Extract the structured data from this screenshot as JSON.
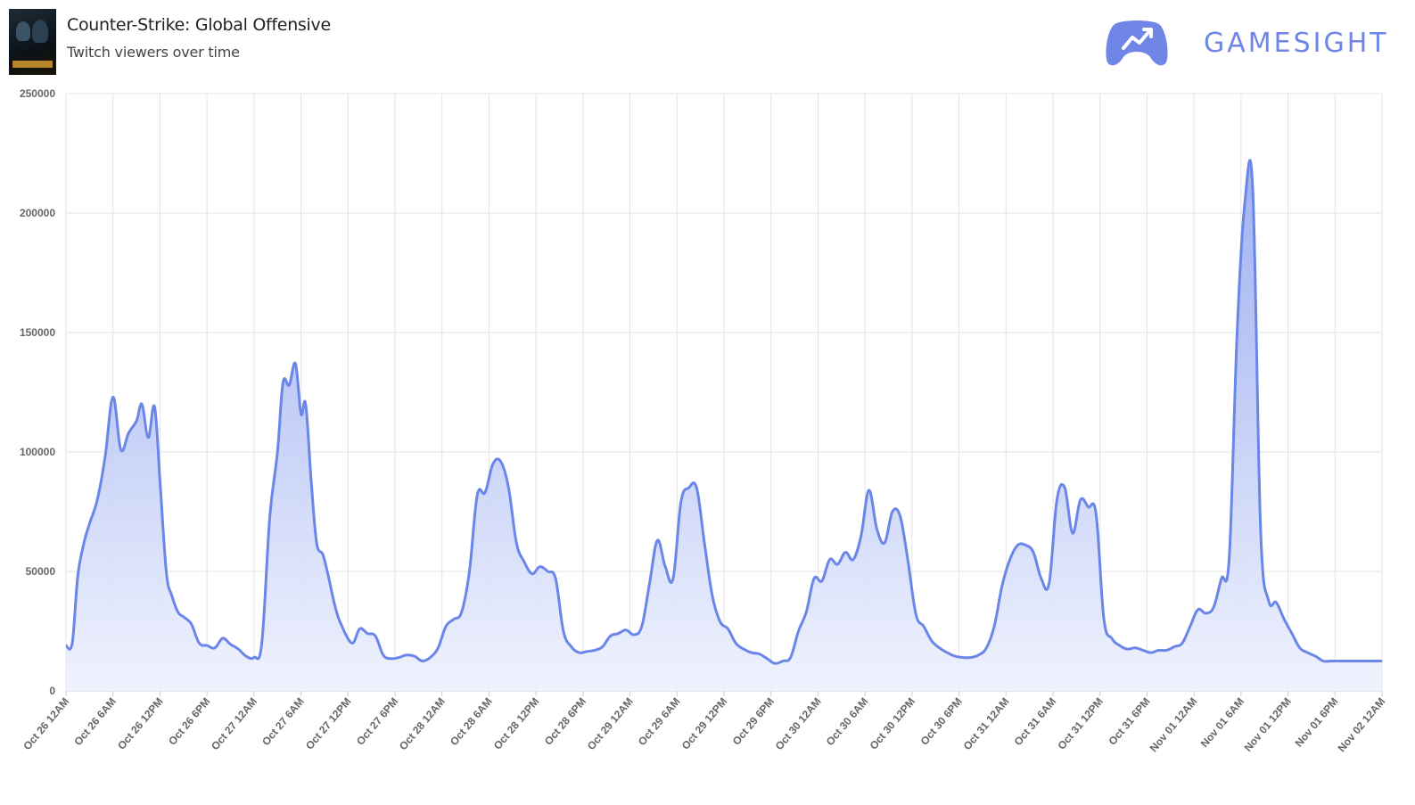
{
  "header": {
    "game_title": "Counter-Strike: Global Offensive",
    "subtitle": "Twitch viewers over time",
    "thumbnail_icon": "csgo-cover-art-icon"
  },
  "brand": {
    "name": "GAMESIGHT",
    "icon": "gamepad-trend-icon",
    "color": "#6f86e6"
  },
  "chart_data": {
    "type": "area",
    "title": "",
    "xlabel": "",
    "ylabel": "",
    "ylim": [
      0,
      250000
    ],
    "yticks": [
      0,
      50000,
      100000,
      150000,
      200000,
      250000
    ],
    "grid": true,
    "line_color": "#6a86e8",
    "fill_color_top": "#8ea4ef",
    "fill_color_bottom": "#eef1fd",
    "x_tick_labels": [
      "Oct 26 12AM",
      "Oct 26 6AM",
      "Oct 26 12PM",
      "Oct 26 6PM",
      "Oct 27 12AM",
      "Oct 27 6AM",
      "Oct 27 12PM",
      "Oct 27 6PM",
      "Oct 28 12AM",
      "Oct 28 6AM",
      "Oct 28 12PM",
      "Oct 28 6PM",
      "Oct 29 12AM",
      "Oct 29 6AM",
      "Oct 29 12PM",
      "Oct 29 6PM",
      "Oct 30 12AM",
      "Oct 30 6AM",
      "Oct 30 12PM",
      "Oct 30 6PM",
      "Oct 31 12AM",
      "Oct 31 6AM",
      "Oct 31 12PM",
      "Oct 31 6PM",
      "Nov 01 12AM",
      "Nov 01 6AM",
      "Nov 01 12PM",
      "Nov 01 6PM",
      "Nov 02 12AM"
    ],
    "series": [
      {
        "hours": [
          0,
          0.8,
          1.5,
          2.3,
          3,
          4,
          5,
          6,
          7,
          8,
          9,
          9.7,
          10.5,
          11.3,
          12,
          12.8,
          13.5,
          14.3,
          15,
          16,
          17,
          18,
          19,
          20,
          21,
          22,
          23,
          24,
          25,
          26,
          27,
          27.7,
          28.5,
          29.3,
          30,
          30.6,
          31.3,
          32,
          32.8,
          33.5,
          34.3,
          35.1,
          36.5,
          37.5,
          38.5,
          39.5,
          40.5,
          41.5,
          42.5,
          43.5,
          44.5,
          45.5,
          46.5,
          47.5,
          48.5,
          49.5,
          50.5,
          51.5,
          52.5,
          53.5,
          54.5,
          55.5,
          56.5,
          57.5,
          58.5,
          59.5,
          60.5,
          61.5,
          62.5,
          63.5,
          64.5,
          65.5,
          66.5,
          67.5,
          68.5,
          69.5,
          70.5,
          71.5,
          72.5,
          73.5,
          74.5,
          75.5,
          76.5,
          77.5,
          78.5,
          79.5,
          80.5,
          81.5,
          82.5,
          83.5,
          84.5,
          85.5,
          86.5,
          87.5,
          88.5,
          89.5,
          90.5,
          91.5,
          92.5,
          93.5,
          94.5,
          95.5,
          96.5,
          97.5,
          98.5,
          99.5,
          100.5,
          101.5,
          102.5,
          103.5,
          104.5,
          105.5,
          106.5,
          107.5,
          108.5,
          109.5,
          110.5,
          111.5,
          112.5,
          113.5,
          114.5,
          115.5,
          116.5,
          117.5,
          118.5,
          119.5,
          120.5,
          121.5,
          122.5,
          123.5,
          124.5,
          125.5,
          126.5,
          127.5,
          128.5,
          129.5,
          130.5,
          131.5,
          132.5,
          133.5,
          134.5,
          135.5,
          136.5,
          137.5,
          138.5,
          139.5,
          140.5,
          141.5,
          142.5,
          143.5,
          144.5,
          145.5,
          146.5,
          147.5,
          148.5,
          149.5,
          150.5,
          151.5,
          152.5,
          153.5,
          154.5,
          155.5,
          156.5,
          157.5,
          158.5,
          159.5,
          160.5,
          161.5,
          162.5,
          163.5,
          164.5,
          165.5,
          166.5,
          167.5,
          168
        ],
        "values": [
          19000,
          20000,
          48000,
          62000,
          70000,
          80000,
          98000,
          123000,
          101000,
          108000,
          113000,
          120000,
          106000,
          119000,
          88000,
          50000,
          40000,
          33000,
          31000,
          28000,
          20000,
          19000,
          18000,
          22000,
          19500,
          17500,
          14500,
          14000,
          20000,
          72000,
          100000,
          129000,
          128000,
          137000,
          116000,
          120000,
          88000,
          62000,
          57000,
          48000,
          36000,
          28000,
          20000,
          26000,
          24000,
          23000,
          15000,
          13500,
          14000,
          15000,
          14500,
          12500,
          14000,
          18000,
          27000,
          30000,
          33000,
          50000,
          82000,
          83000,
          95000,
          96000,
          85000,
          62000,
          54000,
          49000,
          52000,
          50000,
          47000,
          25000,
          18500,
          16000,
          16500,
          17000,
          18500,
          23000,
          24000,
          25500,
          23500,
          27000,
          45000,
          63000,
          52000,
          47000,
          79000,
          85000,
          85000,
          62000,
          40000,
          29000,
          26000,
          20000,
          17500,
          16000,
          15500,
          13500,
          11500,
          12500,
          14000,
          25000,
          33000,
          47000,
          46000,
          55000,
          53000,
          58000,
          55000,
          65000,
          84000,
          68000,
          62000,
          75000,
          73000,
          54000,
          32000,
          27000,
          21000,
          18000,
          16000,
          14500,
          14000,
          14000,
          15000,
          18000,
          27000,
          44000,
          55000,
          61000,
          61000,
          58000,
          47000,
          45000,
          80000,
          85000,
          66000,
          80000,
          77000,
          74000,
          30000,
          22000,
          19000,
          17500,
          18000,
          17000,
          16000,
          17000,
          17000,
          18500,
          20000,
          27000,
          34000,
          32500,
          35000,
          47000,
          56000,
          150000,
          205000,
          210000,
          68000,
          38000,
          37000,
          30000,
          24000,
          18000,
          16000,
          14500,
          12500,
          12500,
          12500,
          12500,
          12500,
          12500,
          12500,
          12500,
          12500
        ]
      }
    ]
  }
}
